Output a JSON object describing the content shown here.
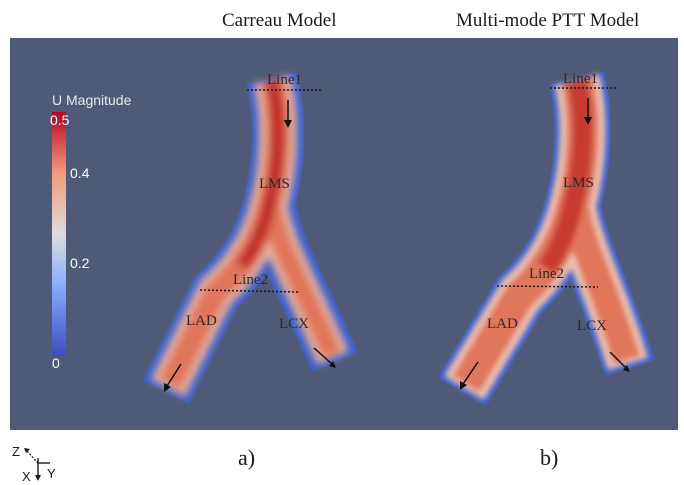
{
  "titles": {
    "left": "Carreau Model",
    "right": "Multi-mode PTT Model"
  },
  "captions": {
    "left": "a)",
    "right": "b)"
  },
  "colorbar": {
    "title": "U Magnitude",
    "ticks": [
      "0.5",
      "0.4",
      "0.2",
      "0"
    ],
    "colors": [
      "#3b4cc0",
      "#8db0fe",
      "#dddcdc",
      "#f49a7b",
      "#b40426"
    ]
  },
  "vessel_labels": {
    "line1": "Line1",
    "line2": "Line2",
    "lms": "LMS",
    "lad": "LAD",
    "lcx": "LCX"
  },
  "axes": {
    "z": "Z",
    "x": "X",
    "y": "Y"
  },
  "colors": {
    "background": "#4e5a78",
    "text": "#1a1a1a"
  }
}
